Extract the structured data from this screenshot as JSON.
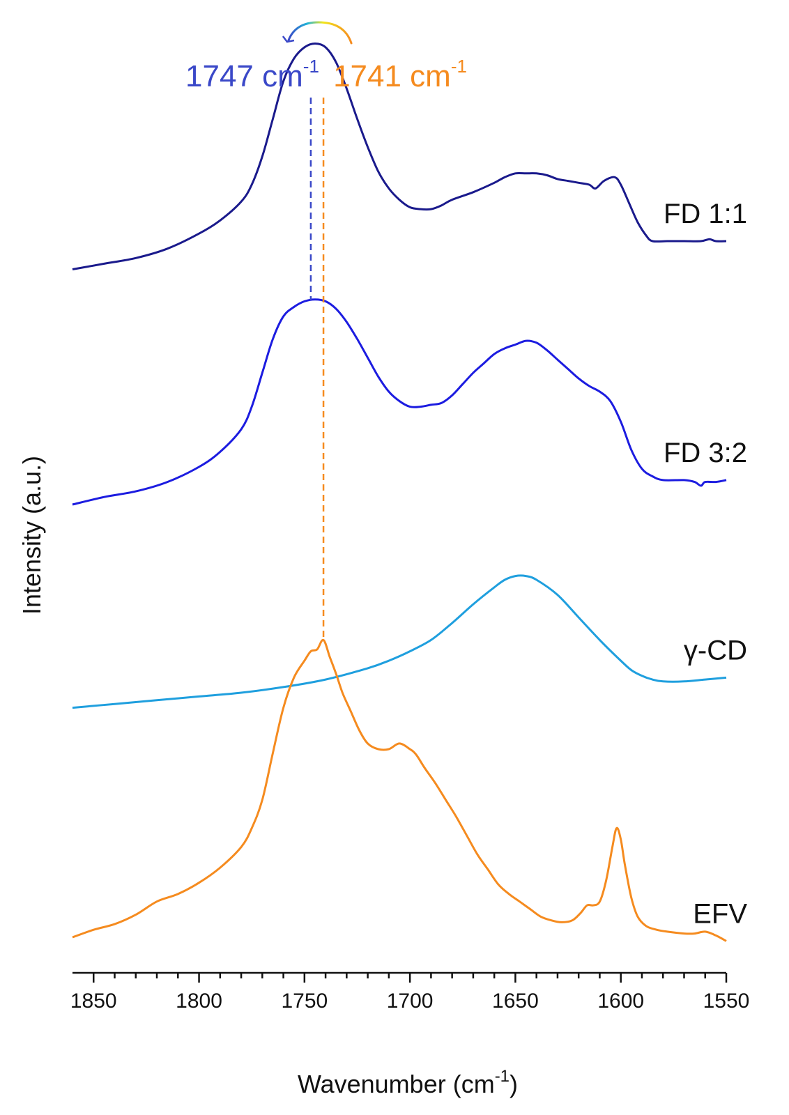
{
  "chart_data": {
    "type": "line",
    "title": "",
    "xlabel": "Wavenumber (cm",
    "xlabel_sup": "-1",
    "xlabel_close": ")",
    "ylabel": "Intensity (a.u.)",
    "xlim": [
      1860,
      1550
    ],
    "x_reversed": true,
    "xticks": [
      1850,
      1800,
      1750,
      1700,
      1650,
      1600,
      1550
    ],
    "grid": false,
    "y_axis_visible": false,
    "series": [
      {
        "name": "FD 1:1",
        "color": "#1a1a8c",
        "offset": 3.55,
        "points": [
          [
            1860,
            0.0
          ],
          [
            1845,
            0.03
          ],
          [
            1830,
            0.06
          ],
          [
            1815,
            0.11
          ],
          [
            1800,
            0.19
          ],
          [
            1790,
            0.26
          ],
          [
            1780,
            0.36
          ],
          [
            1775,
            0.45
          ],
          [
            1770,
            0.6
          ],
          [
            1765,
            0.8
          ],
          [
            1760,
            1.0
          ],
          [
            1755,
            1.12
          ],
          [
            1750,
            1.18
          ],
          [
            1745,
            1.2
          ],
          [
            1740,
            1.18
          ],
          [
            1735,
            1.1
          ],
          [
            1730,
            0.96
          ],
          [
            1725,
            0.8
          ],
          [
            1720,
            0.65
          ],
          [
            1715,
            0.52
          ],
          [
            1710,
            0.43
          ],
          [
            1705,
            0.37
          ],
          [
            1700,
            0.33
          ],
          [
            1695,
            0.32
          ],
          [
            1690,
            0.32
          ],
          [
            1685,
            0.34
          ],
          [
            1680,
            0.37
          ],
          [
            1670,
            0.41
          ],
          [
            1660,
            0.46
          ],
          [
            1655,
            0.49
          ],
          [
            1650,
            0.51
          ],
          [
            1645,
            0.51
          ],
          [
            1640,
            0.51
          ],
          [
            1635,
            0.5
          ],
          [
            1630,
            0.48
          ],
          [
            1625,
            0.47
          ],
          [
            1620,
            0.46
          ],
          [
            1615,
            0.45
          ],
          [
            1612,
            0.43
          ],
          [
            1608,
            0.47
          ],
          [
            1603,
            0.49
          ],
          [
            1600,
            0.45
          ],
          [
            1596,
            0.35
          ],
          [
            1592,
            0.25
          ],
          [
            1588,
            0.18
          ],
          [
            1585,
            0.15
          ],
          [
            1578,
            0.15
          ],
          [
            1570,
            0.15
          ],
          [
            1562,
            0.15
          ],
          [
            1558,
            0.16
          ],
          [
            1555,
            0.15
          ],
          [
            1550,
            0.15
          ]
        ]
      },
      {
        "name": "FD 3:2",
        "color": "#1c1ce0",
        "offset": 2.3,
        "points": [
          [
            1860,
            0.0
          ],
          [
            1845,
            0.04
          ],
          [
            1830,
            0.07
          ],
          [
            1815,
            0.12
          ],
          [
            1800,
            0.2
          ],
          [
            1790,
            0.28
          ],
          [
            1780,
            0.4
          ],
          [
            1775,
            0.52
          ],
          [
            1770,
            0.7
          ],
          [
            1765,
            0.88
          ],
          [
            1760,
            1.0
          ],
          [
            1755,
            1.05
          ],
          [
            1750,
            1.08
          ],
          [
            1745,
            1.09
          ],
          [
            1740,
            1.08
          ],
          [
            1735,
            1.04
          ],
          [
            1730,
            0.97
          ],
          [
            1725,
            0.88
          ],
          [
            1720,
            0.78
          ],
          [
            1715,
            0.68
          ],
          [
            1710,
            0.6
          ],
          [
            1705,
            0.55
          ],
          [
            1700,
            0.52
          ],
          [
            1695,
            0.52
          ],
          [
            1690,
            0.53
          ],
          [
            1685,
            0.54
          ],
          [
            1680,
            0.58
          ],
          [
            1675,
            0.64
          ],
          [
            1670,
            0.7
          ],
          [
            1665,
            0.75
          ],
          [
            1660,
            0.8
          ],
          [
            1655,
            0.83
          ],
          [
            1650,
            0.85
          ],
          [
            1645,
            0.87
          ],
          [
            1640,
            0.86
          ],
          [
            1635,
            0.82
          ],
          [
            1630,
            0.77
          ],
          [
            1625,
            0.72
          ],
          [
            1620,
            0.67
          ],
          [
            1615,
            0.63
          ],
          [
            1610,
            0.6
          ],
          [
            1605,
            0.55
          ],
          [
            1600,
            0.44
          ],
          [
            1595,
            0.29
          ],
          [
            1590,
            0.19
          ],
          [
            1585,
            0.15
          ],
          [
            1580,
            0.13
          ],
          [
            1570,
            0.13
          ],
          [
            1565,
            0.12
          ],
          [
            1562,
            0.1
          ],
          [
            1560,
            0.12
          ],
          [
            1555,
            0.12
          ],
          [
            1550,
            0.13
          ]
        ]
      },
      {
        "name": "γ-CD",
        "color": "#1f9fde",
        "offset": 1.22,
        "points": [
          [
            1860,
            0.0
          ],
          [
            1840,
            0.02
          ],
          [
            1820,
            0.04
          ],
          [
            1800,
            0.06
          ],
          [
            1780,
            0.08
          ],
          [
            1760,
            0.11
          ],
          [
            1740,
            0.15
          ],
          [
            1720,
            0.21
          ],
          [
            1710,
            0.25
          ],
          [
            1700,
            0.3
          ],
          [
            1690,
            0.36
          ],
          [
            1680,
            0.45
          ],
          [
            1670,
            0.55
          ],
          [
            1660,
            0.64
          ],
          [
            1655,
            0.68
          ],
          [
            1650,
            0.7
          ],
          [
            1645,
            0.7
          ],
          [
            1640,
            0.68
          ],
          [
            1630,
            0.6
          ],
          [
            1620,
            0.48
          ],
          [
            1610,
            0.36
          ],
          [
            1600,
            0.25
          ],
          [
            1595,
            0.2
          ],
          [
            1590,
            0.17
          ],
          [
            1585,
            0.15
          ],
          [
            1580,
            0.14
          ],
          [
            1570,
            0.14
          ],
          [
            1560,
            0.15
          ],
          [
            1550,
            0.16
          ]
        ]
      },
      {
        "name": "EFV",
        "color": "#f58b1f",
        "offset": 0.0,
        "points": [
          [
            1860,
            0.0
          ],
          [
            1850,
            0.04
          ],
          [
            1840,
            0.07
          ],
          [
            1830,
            0.12
          ],
          [
            1820,
            0.19
          ],
          [
            1810,
            0.23
          ],
          [
            1800,
            0.29
          ],
          [
            1790,
            0.37
          ],
          [
            1780,
            0.48
          ],
          [
            1775,
            0.58
          ],
          [
            1770,
            0.73
          ],
          [
            1765,
            0.98
          ],
          [
            1760,
            1.22
          ],
          [
            1755,
            1.38
          ],
          [
            1750,
            1.47
          ],
          [
            1747,
            1.52
          ],
          [
            1744,
            1.53
          ],
          [
            1741,
            1.58
          ],
          [
            1738,
            1.49
          ],
          [
            1735,
            1.4
          ],
          [
            1732,
            1.3
          ],
          [
            1728,
            1.2
          ],
          [
            1724,
            1.1
          ],
          [
            1720,
            1.03
          ],
          [
            1715,
            1.0
          ],
          [
            1710,
            1.0
          ],
          [
            1705,
            1.03
          ],
          [
            1700,
            1.0
          ],
          [
            1697,
            0.97
          ],
          [
            1693,
            0.9
          ],
          [
            1688,
            0.82
          ],
          [
            1683,
            0.73
          ],
          [
            1678,
            0.64
          ],
          [
            1673,
            0.54
          ],
          [
            1668,
            0.44
          ],
          [
            1663,
            0.36
          ],
          [
            1658,
            0.28
          ],
          [
            1653,
            0.23
          ],
          [
            1648,
            0.19
          ],
          [
            1643,
            0.15
          ],
          [
            1638,
            0.11
          ],
          [
            1633,
            0.09
          ],
          [
            1628,
            0.08
          ],
          [
            1623,
            0.09
          ],
          [
            1619,
            0.13
          ],
          [
            1616,
            0.17
          ],
          [
            1613,
            0.17
          ],
          [
            1610,
            0.19
          ],
          [
            1607,
            0.3
          ],
          [
            1604,
            0.48
          ],
          [
            1602,
            0.58
          ],
          [
            1600,
            0.52
          ],
          [
            1598,
            0.38
          ],
          [
            1595,
            0.21
          ],
          [
            1592,
            0.11
          ],
          [
            1588,
            0.06
          ],
          [
            1583,
            0.04
          ],
          [
            1578,
            0.03
          ],
          [
            1570,
            0.02
          ],
          [
            1565,
            0.02
          ],
          [
            1560,
            0.03
          ],
          [
            1555,
            0.01
          ],
          [
            1550,
            -0.02
          ]
        ]
      }
    ],
    "annotations": [
      {
        "text": "1747 cm",
        "sup": "-1",
        "x": 1747,
        "color": "#3a48c8",
        "line_from_series": 1,
        "line_to_series": 0
      },
      {
        "text": "1741 cm",
        "sup": "-1",
        "x": 1741,
        "color": "#f58b1f",
        "line_from_series": 3,
        "line_to_series": 0
      }
    ],
    "shift_arrow": {
      "from_x": 1741,
      "to_x": 1747,
      "direction": "left"
    }
  }
}
